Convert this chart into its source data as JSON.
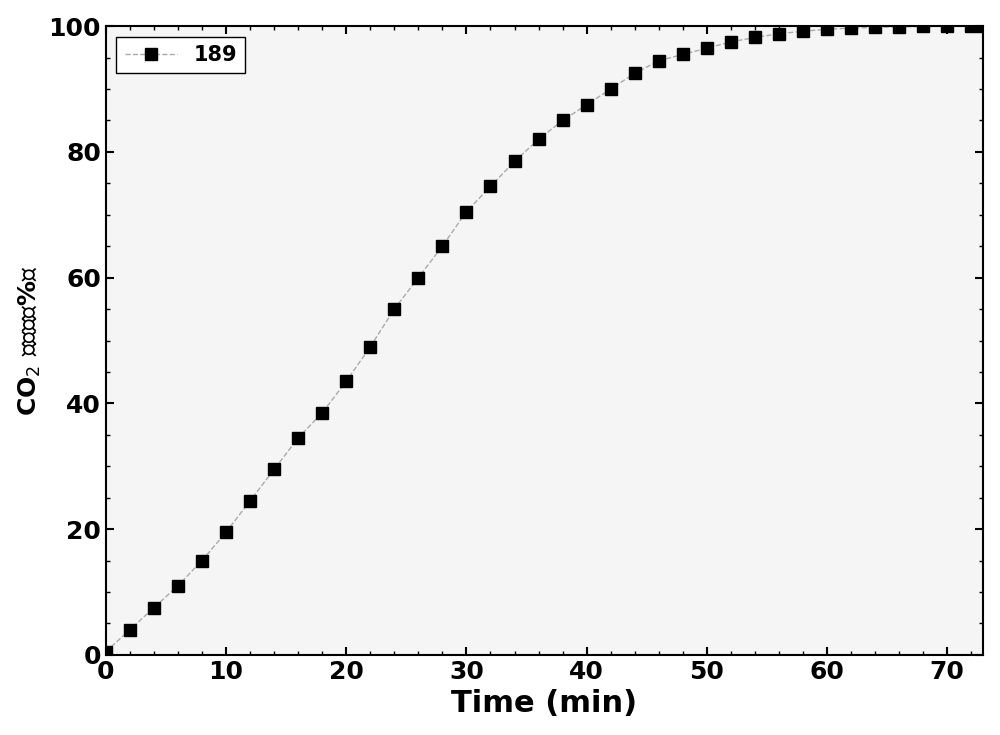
{
  "x": [
    0,
    2,
    4,
    6,
    8,
    10,
    12,
    14,
    16,
    18,
    20,
    22,
    24,
    26,
    28,
    30,
    32,
    34,
    36,
    38,
    40,
    42,
    44,
    46,
    48,
    50,
    52,
    54,
    56,
    58,
    60,
    62,
    64,
    66,
    68,
    70,
    72,
    73
  ],
  "y": [
    0.5,
    4.0,
    7.5,
    11.0,
    15.0,
    19.5,
    24.5,
    29.5,
    34.5,
    38.5,
    43.5,
    49.0,
    55.0,
    60.0,
    65.0,
    70.5,
    74.5,
    78.5,
    82.0,
    85.0,
    87.5,
    90.0,
    92.5,
    94.5,
    95.5,
    96.5,
    97.5,
    98.2,
    98.8,
    99.2,
    99.5,
    99.7,
    99.8,
    99.9,
    99.95,
    99.98,
    99.99,
    100.0
  ],
  "xlim": [
    0,
    73
  ],
  "ylim": [
    0,
    100
  ],
  "xticks": [
    0,
    10,
    20,
    30,
    40,
    50,
    60,
    70
  ],
  "yticks": [
    0,
    20,
    40,
    60,
    80,
    100
  ],
  "xlabel": "Time (min)",
  "legend_label": "189",
  "line_color": "#aaaaaa",
  "marker_color": "#000000",
  "marker": "s",
  "markersize": 8,
  "linewidth": 1.0,
  "linestyle": "--",
  "background_color": "#ffffff",
  "plot_bg_color": "#f5f5f5",
  "xlabel_fontsize": 22,
  "ylabel_fontsize": 18,
  "tick_fontsize": 18,
  "legend_fontsize": 15
}
